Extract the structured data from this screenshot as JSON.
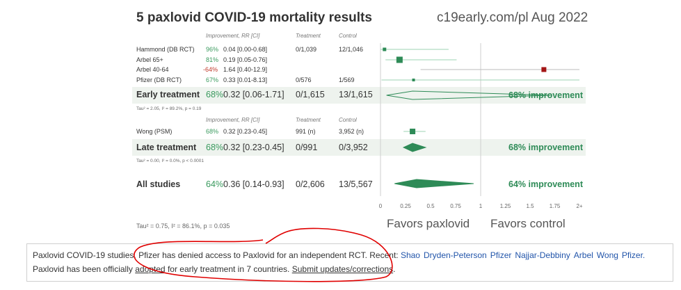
{
  "title": "5 paxlovid COVID-19 mortality results",
  "source": "c19early.com/pl Aug 2022",
  "headers": {
    "improvement": "Improvement, RR [CI]",
    "treatment": "Treatment",
    "control": "Control"
  },
  "early": {
    "studies": [
      {
        "name": "Hammond (DB RCT)",
        "pct": "96%",
        "rr": "0.04 [0.00-0.68]",
        "treatment": "0/1,039",
        "control": "12/1,046"
      },
      {
        "name": "Arbel 65+",
        "pct": "81%",
        "rr": "0.19 [0.05-0.76]",
        "treatment": "",
        "control": ""
      },
      {
        "name": "Arbel 40-64",
        "pct": "-64%",
        "rr": "1.64 [0.40-12.9]",
        "treatment": "",
        "control": ""
      },
      {
        "name": "Pfizer (DB RCT)",
        "pct": "67%",
        "rr": "0.33 [0.01-8.13]",
        "treatment": "0/576",
        "control": "1/569"
      }
    ],
    "summary": {
      "name": "Early treatment",
      "pct": "68%",
      "rr": "0.32 [0.06-1.71]",
      "treatment": "0/1,615",
      "control": "13/1,615",
      "improvement": "68% improvement"
    },
    "tau": "Tau² = 2.05, I² = 89.2%, p = 0.19"
  },
  "late": {
    "studies": [
      {
        "name": "Wong (PSM)",
        "pct": "68%",
        "rr": "0.32 [0.23-0.45]",
        "treatment": "991 (n)",
        "control": "3,952 (n)"
      }
    ],
    "summary": {
      "name": "Late treatment",
      "pct": "68%",
      "rr": "0.32 [0.23-0.45]",
      "treatment": "0/991",
      "control": "0/3,952",
      "improvement": "68% improvement"
    },
    "tau": "Tau² = 0.00, I² = 0.0%, p < 0.0001"
  },
  "all": {
    "name": "All studies",
    "pct": "64%",
    "rr": "0.36 [0.14-0.93]",
    "treatment": "0/2,606",
    "control": "13/5,567",
    "improvement": "64% improvement"
  },
  "tau_all": "Tau² = 0.75, I² = 86.1%, p = 0.035",
  "favors": {
    "left": "Favors paxlovid",
    "right": "Favors control"
  },
  "notice": {
    "text1": "Paxlovid COVID-19 studies. Pfizer has denied access to Paxlovid for an independent RCT. Recent:",
    "links": [
      "Shao",
      "Dryden-Peterson",
      "Pfizer",
      "Najjar-Debbiny",
      "Arbel",
      "Wong",
      "Pfizer."
    ],
    "text2a": "Paxlovid has been officially",
    "text2b": "adopted",
    "text2c": "for early treatment in 7 countries.",
    "text2d": "Submit updates/corrections",
    "text2e": "."
  },
  "colors": {
    "green": "#2e8b57",
    "red": "#a31515",
    "band": "#eef3ee",
    "annotation": "#e00000"
  },
  "chart_data": {
    "type": "forest",
    "axis_ticks": [
      "0",
      "0.25",
      "0.5",
      "0.75",
      "1",
      "1.25",
      "1.5",
      "1.75",
      "2+"
    ],
    "xlim": [
      0,
      2
    ],
    "reference_line": 1,
    "studies": [
      {
        "name": "Hammond (DB RCT)",
        "rr": 0.04,
        "lo": 0.0,
        "hi": 0.68,
        "color": "green"
      },
      {
        "name": "Arbel 65+",
        "rr": 0.19,
        "lo": 0.05,
        "hi": 0.76,
        "color": "green"
      },
      {
        "name": "Arbel 40-64",
        "rr": 1.64,
        "lo": 0.4,
        "hi": 12.9,
        "color": "red"
      },
      {
        "name": "Pfizer (DB RCT)",
        "rr": 0.33,
        "lo": 0.01,
        "hi": 8.13,
        "color": "green"
      },
      {
        "name": "Wong (PSM)",
        "rr": 0.32,
        "lo": 0.23,
        "hi": 0.45,
        "color": "green"
      }
    ],
    "summaries": [
      {
        "name": "Early treatment",
        "rr": 0.32,
        "lo": 0.06,
        "hi": 1.71
      },
      {
        "name": "Late treatment",
        "rr": 0.32,
        "lo": 0.23,
        "hi": 0.45
      },
      {
        "name": "All studies",
        "rr": 0.36,
        "lo": 0.14,
        "hi": 0.93
      }
    ]
  }
}
